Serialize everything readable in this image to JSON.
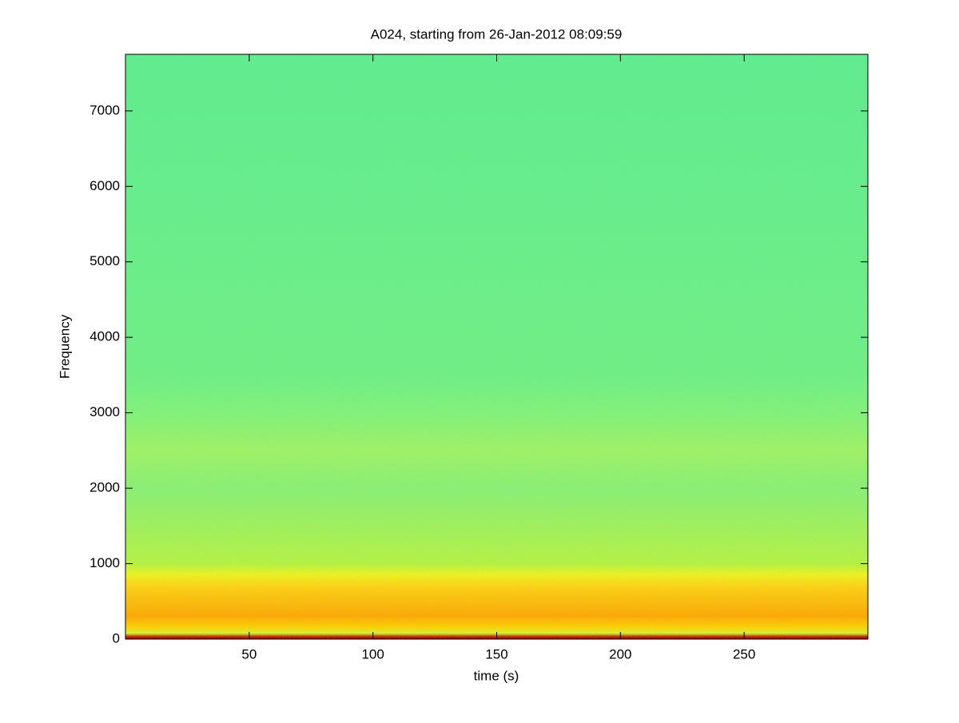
{
  "chart_data": {
    "type": "spectrogram",
    "title": "A024, starting from 26-Jan-2012 08:09:59",
    "xlabel": "time (s)",
    "ylabel": "Frequency",
    "xlim": [
      0,
      300
    ],
    "ylim": [
      0,
      7750
    ],
    "xticks": [
      50,
      100,
      150,
      200,
      250
    ],
    "yticks": [
      0,
      1000,
      2000,
      3000,
      4000,
      5000,
      6000,
      7000
    ],
    "colormap": "jet"
  }
}
